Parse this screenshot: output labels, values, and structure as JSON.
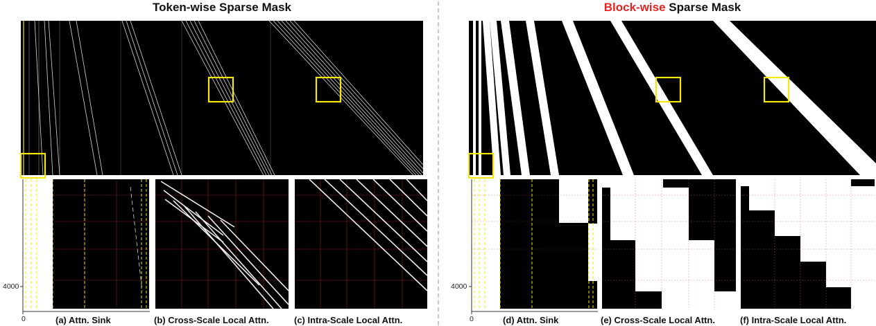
{
  "left": {
    "title": "Token-wise Sparse Mask",
    "captions": {
      "a": "(a) Attn. Sink",
      "b": "(b) Cross-Scale Local Attn.",
      "c": "(c) Intra-Scale Local Attn."
    }
  },
  "right": {
    "title_accent": "Block-wise",
    "title_rest": " Sparse Mask",
    "captions": {
      "d": "(d) Attn. Sink",
      "e": "(e) Cross-Scale Local Attn.",
      "f": "(f) Intra-Scale Local Attn."
    }
  },
  "axis": {
    "y_tick": "4000",
    "x_tick": "0"
  },
  "colors": {
    "mask_on": "#ffffff",
    "mask_off": "#000000",
    "highlight": "#f5e90c",
    "grid": "#c0392b",
    "accent": "#e8231f"
  }
}
